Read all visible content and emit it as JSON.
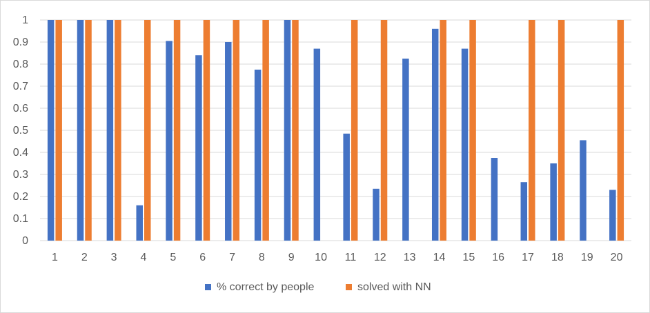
{
  "chart_data": {
    "type": "bar",
    "categories": [
      "1",
      "2",
      "3",
      "4",
      "5",
      "6",
      "7",
      "8",
      "9",
      "10",
      "11",
      "12",
      "13",
      "14",
      "15",
      "16",
      "17",
      "18",
      "19",
      "20"
    ],
    "series": [
      {
        "name": "% correct by people",
        "color": "#4472C4",
        "values": [
          1,
          1,
          1,
          0.16,
          0.905,
          0.84,
          0.9,
          0.775,
          1,
          0.87,
          0.485,
          0.235,
          0.825,
          0.96,
          0.87,
          0.375,
          0.265,
          0.35,
          0.455,
          0.23
        ]
      },
      {
        "name": "solved with NN",
        "color": "#ED7D31",
        "values": [
          1,
          1,
          1,
          1,
          1,
          1,
          1,
          1,
          1,
          0,
          1,
          1,
          0,
          1,
          1,
          0,
          1,
          1,
          0,
          1
        ]
      }
    ],
    "y_ticks": [
      "0",
      "0.1",
      "0.2",
      "0.3",
      "0.4",
      "0.5",
      "0.6",
      "0.7",
      "0.8",
      "0.9",
      "1"
    ],
    "ylim": [
      0,
      1
    ],
    "grid": true,
    "legend": "bottom",
    "gridline_color": "#d9d9d9"
  }
}
